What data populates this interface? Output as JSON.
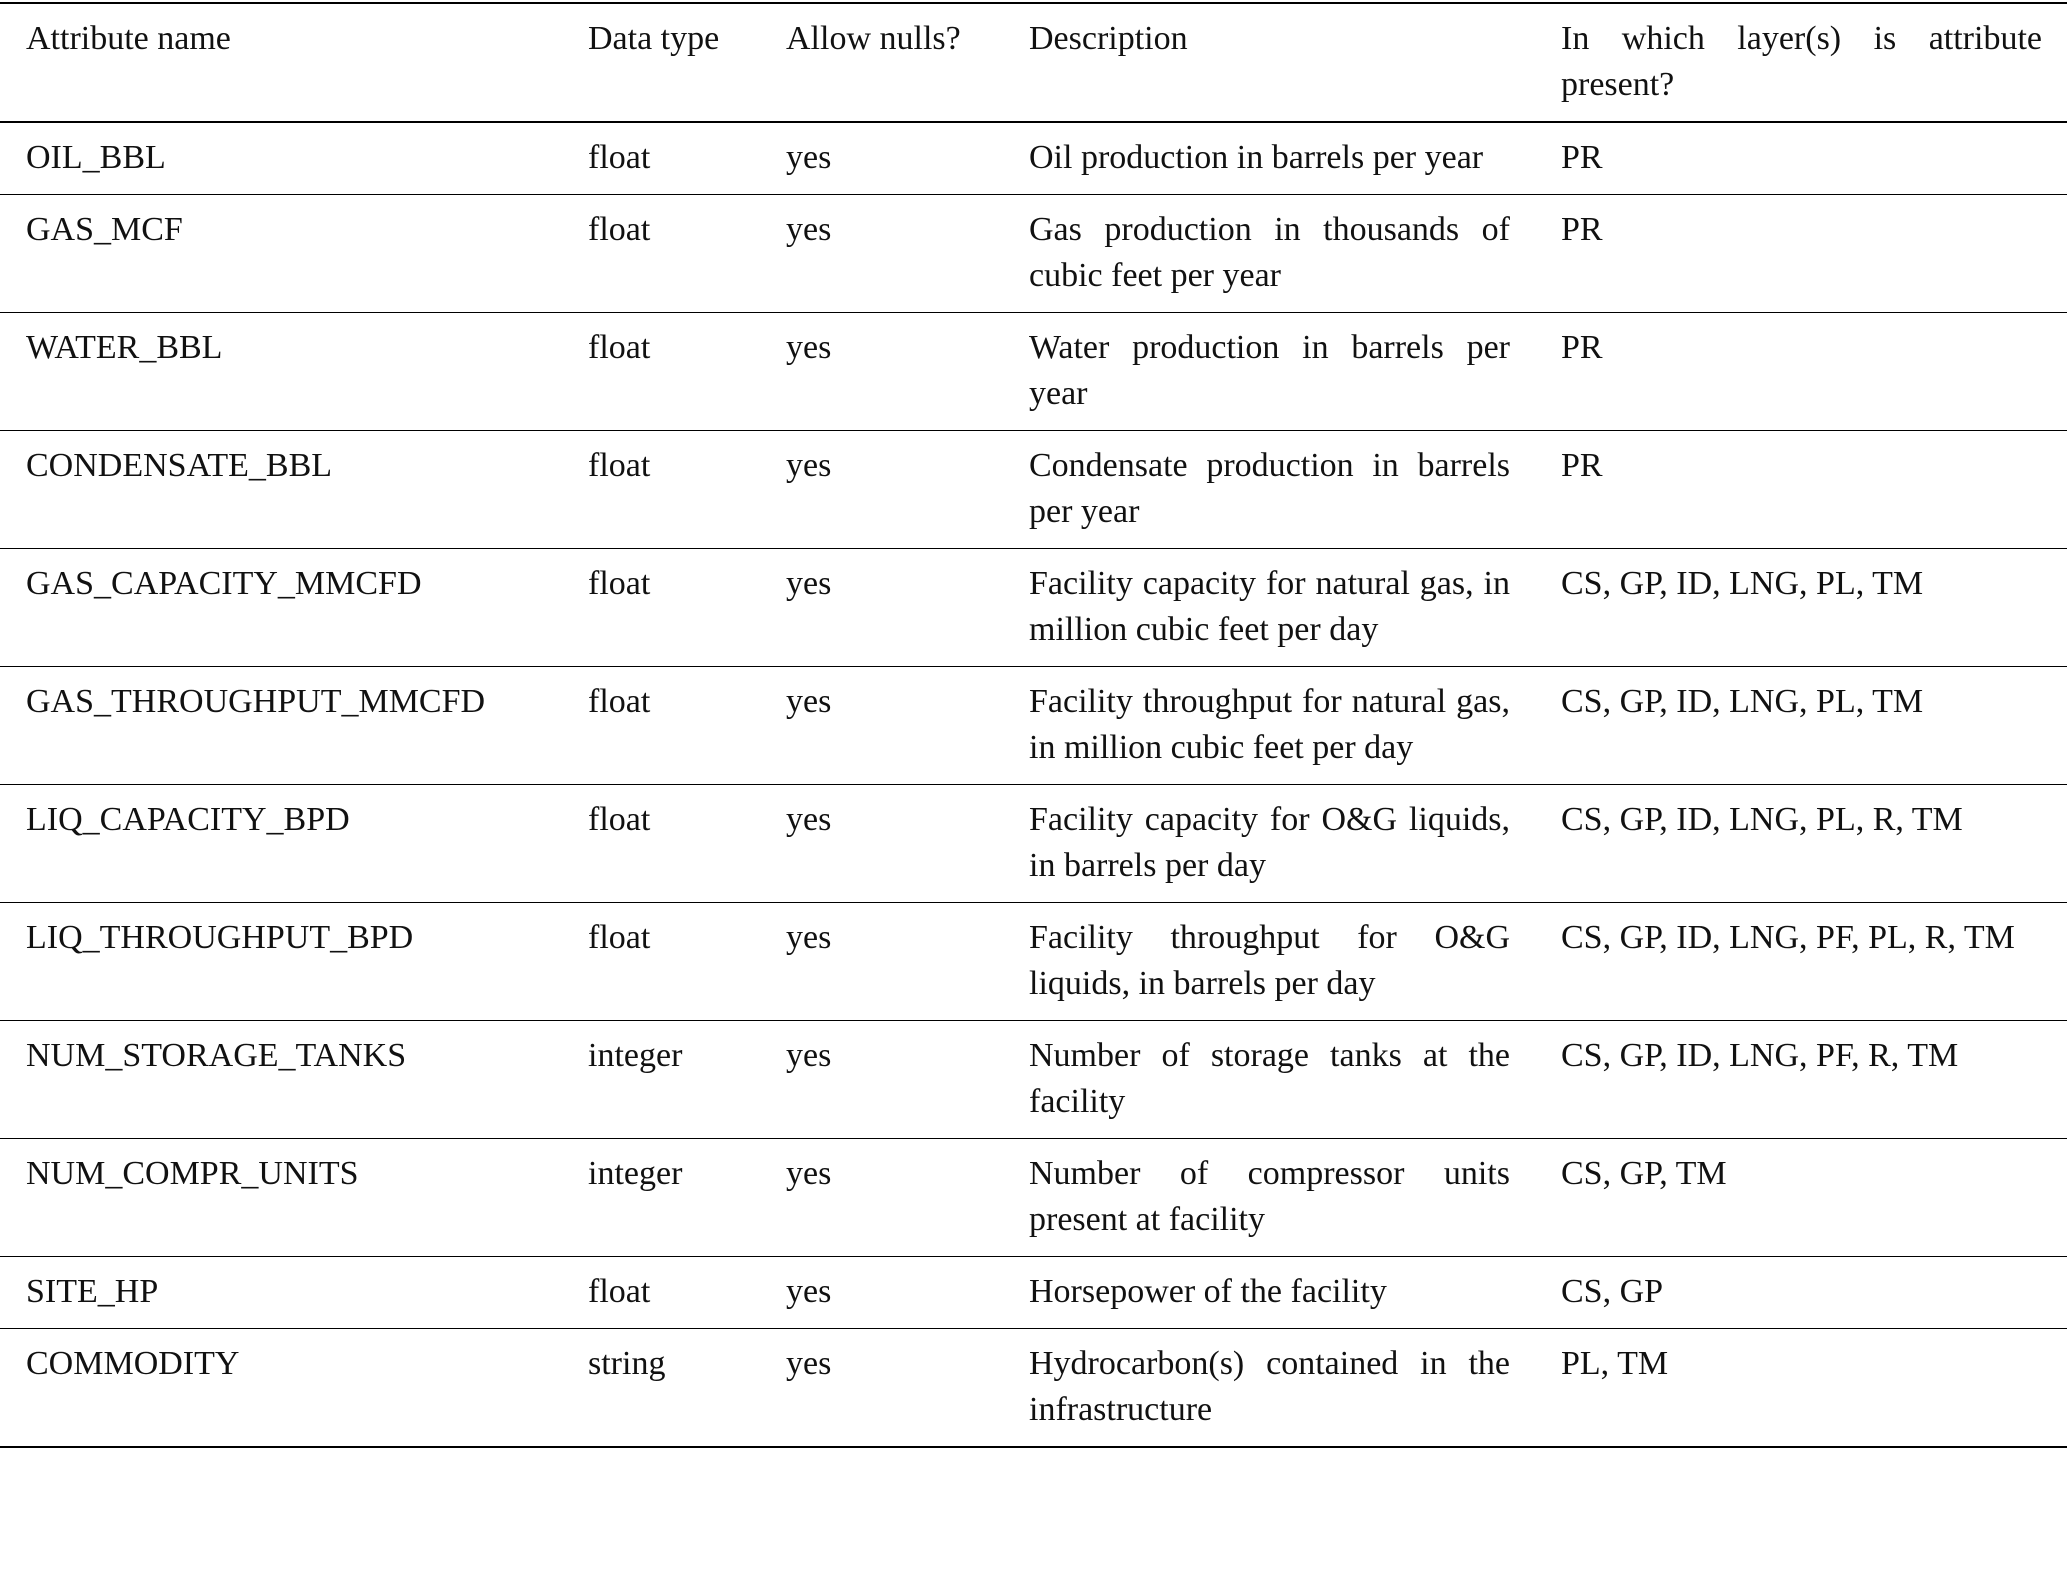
{
  "table": {
    "columns": [
      "Attribute name",
      "Data type",
      "Allow nulls?",
      "Description",
      "In which layer(s) is attribute present?"
    ],
    "rows": [
      [
        "OIL_BBL",
        "float",
        "yes",
        "Oil production in barrels per year",
        "PR"
      ],
      [
        "GAS_MCF",
        "float",
        "yes",
        "Gas production in thousands of cubic feet per year",
        "PR"
      ],
      [
        "WATER_BBL",
        "float",
        "yes",
        "Water production in barrels per year",
        "PR"
      ],
      [
        "CONDENSATE_BBL",
        "float",
        "yes",
        "Condensate production in barrels per year",
        "PR"
      ],
      [
        "GAS_CAPACITY_MMCFD",
        "float",
        "yes",
        "Facility capacity for natural gas, in million cubic feet per day",
        "CS, GP, ID, LNG, PL, TM"
      ],
      [
        "GAS_THROUGHPUT_MMCFD",
        "float",
        "yes",
        "Facility throughput for natural gas, in million cubic feet per day",
        "CS, GP, ID, LNG, PL, TM"
      ],
      [
        "LIQ_CAPACITY_BPD",
        "float",
        "yes",
        "Facility capacity for O&G liquids, in barrels per day",
        "CS, GP, ID, LNG, PL, R, TM"
      ],
      [
        "LIQ_THROUGHPUT_BPD",
        "float",
        "yes",
        "Facility throughput for O&G liquids, in barrels per day",
        "CS, GP, ID, LNG, PF, PL, R, TM"
      ],
      [
        "NUM_STORAGE_TANKS",
        "integer",
        "yes",
        "Number of storage tanks at the facility",
        "CS, GP, ID, LNG, PF, R, TM"
      ],
      [
        "NUM_COMPR_UNITS",
        "integer",
        "yes",
        "Number of compressor units present at facility",
        "CS, GP, TM"
      ],
      [
        "SITE_HP",
        "float",
        "yes",
        "Horsepower of the facility",
        "CS, GP"
      ],
      [
        "COMMODITY",
        "string",
        "yes",
        "Hydrocarbon(s) contained in the infrastructure",
        "PL, TM"
      ]
    ]
  }
}
